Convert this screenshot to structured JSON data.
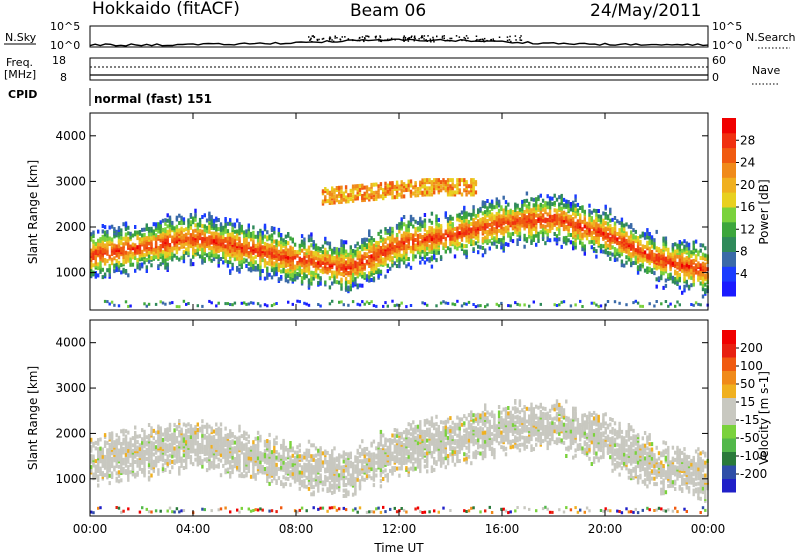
{
  "header": {
    "left": "Hokkaido (fitACF)",
    "center": "Beam 06",
    "right": "24/May/2011"
  },
  "top_panels": {
    "nsky_label": "N.Sky",
    "nsky_ticks": [
      "10^5",
      "10^0"
    ],
    "nsearch_label": "N.Search",
    "nsearch_ticks": [
      "10^5",
      "10^0"
    ],
    "freq_label": "Freq.",
    "freq_unit": "[MHz]",
    "freq_ticks": [
      "18",
      "8"
    ],
    "nave_label": "Nave",
    "nave_ticks": [
      "60",
      "0"
    ],
    "cpid_tag": "CPID",
    "cpid_text": "normal (fast) 151"
  },
  "colors": {
    "power_scale": [
      "#1a1aff",
      "#1a3cff",
      "#3a6aa8",
      "#2f8a5a",
      "#3ca63c",
      "#7ad23c",
      "#e8d020",
      "#f0b020",
      "#f08a1a",
      "#f05a10",
      "#f03010",
      "#f00000"
    ],
    "velocity_scale": [
      "#2020c8",
      "#2f4ea8",
      "#2a7a3a",
      "#52b84a",
      "#7ad23c",
      "#c8c8c0",
      "#c8c8c0",
      "#f0b020",
      "#f08a1a",
      "#f05a10",
      "#e82010",
      "#f00000"
    ],
    "scatter_gray": "#c8c8c0",
    "accent_red": "#f00000"
  },
  "chart_data": [
    {
      "type": "heatmap",
      "title": "",
      "xlabel": "",
      "ylabel": "Slant Range [km]",
      "x_ticks": [
        "00:00",
        "04:00",
        "08:00",
        "12:00",
        "16:00",
        "20:00",
        "00:00"
      ],
      "xlim": [
        0,
        24
      ],
      "y_ticks": [
        "1000",
        "2000",
        "3000",
        "4000"
      ],
      "ylim": [
        180,
        4500
      ],
      "colorbar": {
        "label": "Power [dB]",
        "ticks": [
          "4",
          "8",
          "12",
          "16",
          "20",
          "24",
          "28"
        ],
        "range": [
          0,
          30
        ]
      },
      "bands": [
        {
          "x": [
            0,
            2,
            4,
            6,
            8,
            10,
            12,
            14,
            16,
            18,
            20,
            22,
            24
          ],
          "center": [
            1350,
            1520,
            1720,
            1500,
            1250,
            1050,
            1600,
            1780,
            2050,
            2150,
            1800,
            1250,
            1000
          ],
          "width": 520,
          "power": 26
        },
        {
          "x": [
            9,
            11,
            13,
            15
          ],
          "center": [
            2650,
            2750,
            2850,
            2850
          ],
          "width": 180,
          "power": 18
        }
      ]
    },
    {
      "type": "heatmap",
      "title": "",
      "xlabel": "Time UT",
      "ylabel": "Slant Range [km]",
      "x_ticks": [
        "00:00",
        "04:00",
        "08:00",
        "12:00",
        "16:00",
        "20:00",
        "00:00"
      ],
      "xlim": [
        0,
        24
      ],
      "y_ticks": [
        "1000",
        "2000",
        "3000",
        "4000"
      ],
      "ylim": [
        180,
        4500
      ],
      "colorbar": {
        "label": "Velocity [m s-1]",
        "ticks": [
          "200",
          "100",
          "50",
          "15",
          "-15",
          "-50",
          "-100",
          "-200"
        ],
        "range": [
          -250,
          250
        ]
      },
      "bands": [
        {
          "x": [
            0,
            2,
            4,
            6,
            8,
            10,
            12,
            14,
            16,
            18,
            20,
            22,
            24
          ],
          "center": [
            1350,
            1520,
            1720,
            1500,
            1250,
            1050,
            1600,
            1780,
            2050,
            2150,
            1800,
            1250,
            1000
          ],
          "width": 520,
          "velocity": 0
        }
      ]
    }
  ]
}
